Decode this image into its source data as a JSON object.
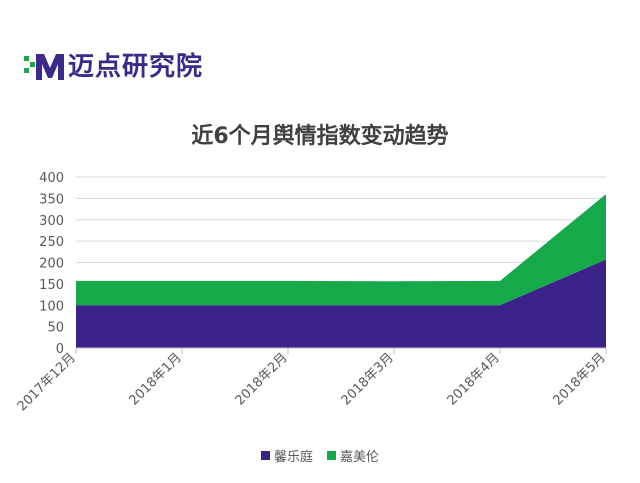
{
  "brand": {
    "name": "迈点研究院",
    "mark_colors": [
      "#3b2a8a",
      "#1aa84a"
    ]
  },
  "chart_data": {
    "type": "area",
    "stacked": true,
    "title": "近6个月舆情指数变动趋势",
    "categories": [
      "2017年12月",
      "2018年1月",
      "2018年2月",
      "2018年3月",
      "2018年4月",
      "2018年5月"
    ],
    "series": [
      {
        "name": "馨乐庭",
        "color": "#3b2289",
        "values": [
          100,
          100,
          100,
          100,
          100,
          207
        ]
      },
      {
        "name": "嘉美伦",
        "color": "#16a94a",
        "values": [
          57,
          57,
          57,
          56,
          57,
          153
        ]
      }
    ],
    "y_ticks": [
      0,
      50,
      100,
      150,
      200,
      250,
      300,
      350,
      400
    ],
    "ylim": [
      0,
      400
    ],
    "grid": true,
    "legend_position": "bottom"
  }
}
